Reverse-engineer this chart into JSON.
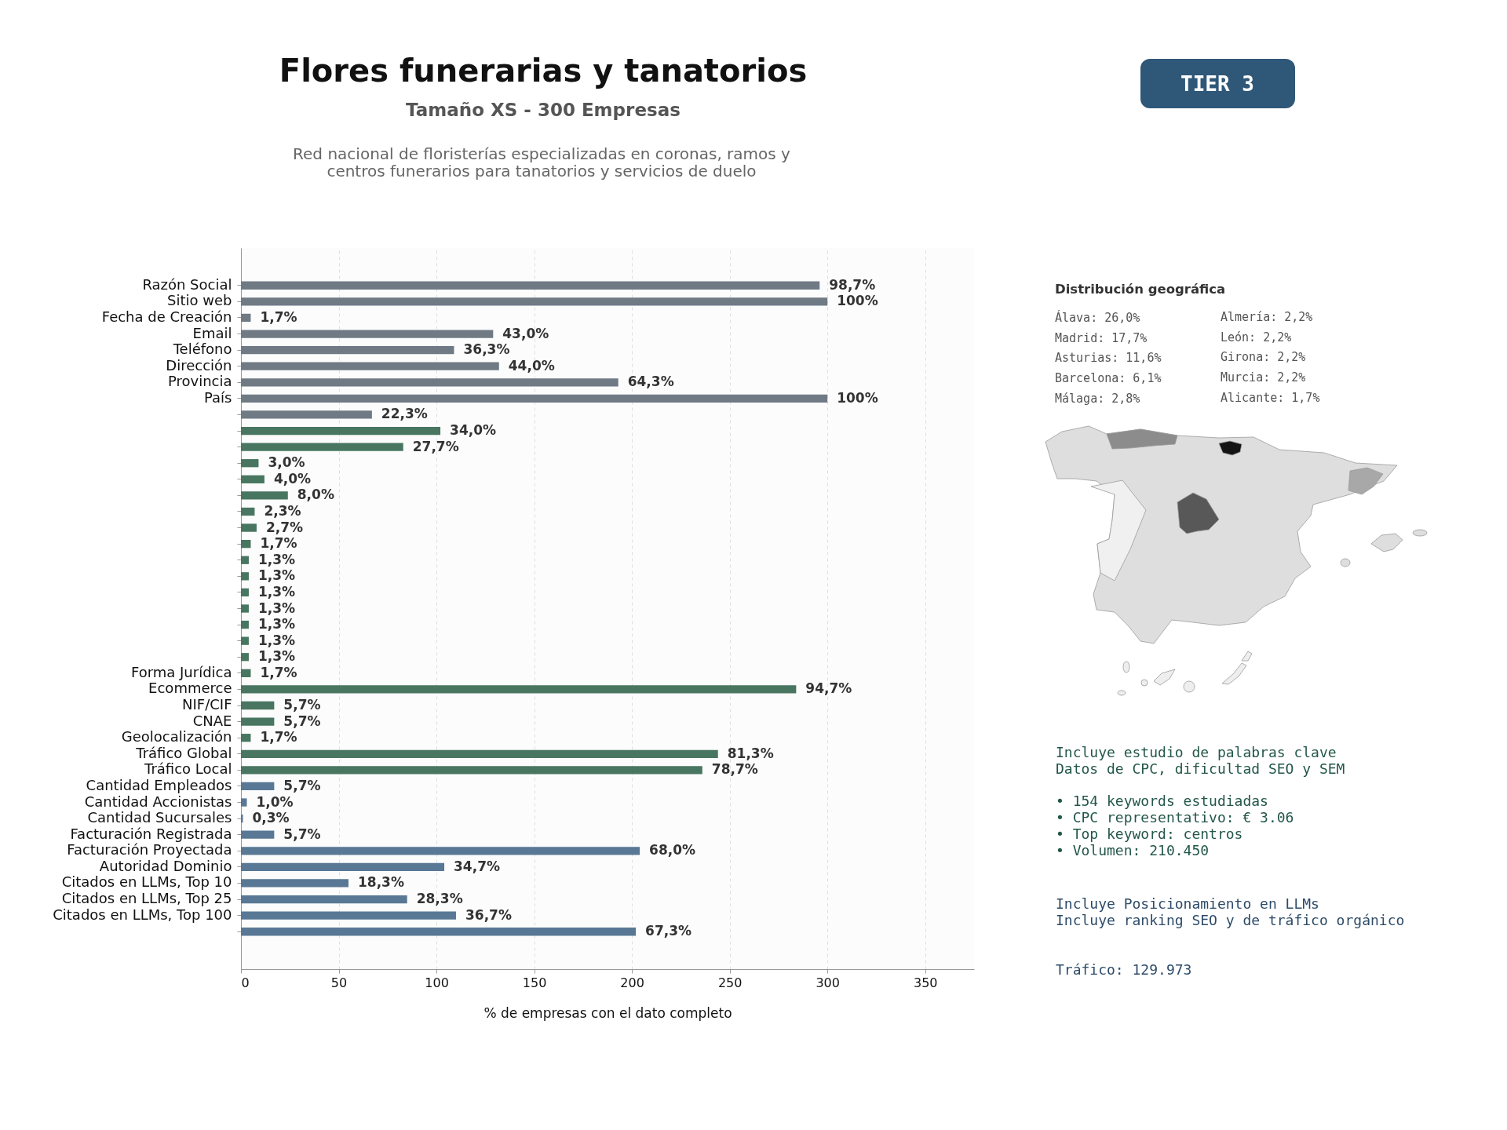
{
  "chart_data": {
    "type": "bar",
    "orientation": "horizontal",
    "title": "Flores funerarias y tanatorios",
    "subtitle": "Tamaño XS - 300 Empresas",
    "xlabel": "% de empresas con el dato completo",
    "categories": [
      "Razón Social",
      "Sitio web",
      "Fecha de Creación",
      "Email",
      "Teléfono",
      "Dirección",
      "Provincia",
      "País",
      null,
      null,
      null,
      null,
      null,
      null,
      null,
      null,
      null,
      null,
      null,
      null,
      null,
      null,
      null,
      null,
      "Forma Jurídica",
      "Ecommerce",
      "NIF/CIF",
      "CNAE",
      "Geolocalización",
      "Tráfico Global",
      "Tráfico Local",
      "Cantidad Empleados",
      "Cantidad Accionistas",
      "Cantidad Sucursales",
      "Facturación Registrada",
      "Facturación Proyectada",
      "Autoridad Dominio",
      "Citados en LLMs, Top 10",
      "Citados en LLMs, Top 25",
      "Citados en LLMs, Top 100",
      null
    ],
    "values": [
      296,
      300,
      5,
      129,
      109,
      132,
      193,
      300,
      67,
      102,
      83,
      9,
      12,
      24,
      7,
      8,
      5,
      4,
      4,
      4,
      4,
      4,
      4,
      4,
      5,
      284,
      17,
      17,
      5,
      244,
      236,
      17,
      3,
      1,
      17,
      204,
      104,
      55,
      85,
      110,
      202
    ],
    "colors": [
      "#6f7a85",
      "#6f7a85",
      "#6f7a85",
      "#6f7a85",
      "#6f7a85",
      "#6f7a85",
      "#6f7a85",
      "#6f7a85",
      "#6f7a85",
      "#487661",
      "#487661",
      "#487661",
      "#487661",
      "#487661",
      "#487661",
      "#487661",
      "#487661",
      "#487661",
      "#487661",
      "#487661",
      "#487661",
      "#487661",
      "#487661",
      "#487661",
      "#487661",
      "#487661",
      "#487661",
      "#487661",
      "#487661",
      "#487661",
      "#487661",
      "#587895",
      "#587895",
      "#587895",
      "#587895",
      "#587895",
      "#587895",
      "#587895",
      "#587895",
      "#587895",
      "#587895"
    ],
    "xlim": [
      0,
      375
    ],
    "xticks": [
      0,
      50,
      100,
      150,
      200,
      250,
      300,
      350
    ],
    "grid": "x",
    "annotations": [
      "Red nacional de floristerías especializadas en coronas, ramos y\ncentros funerarios para tanatorios y servicios de duelo",
      "TIER 3",
      "Distribución geográfica",
      "Álava: 26,0%",
      "Madrid: 17,7%",
      "Asturias: 11,6%",
      "Barcelona: 6,1%",
      "Málaga: 2,8%",
      "Almería: 2,2%",
      "León: 2,2%",
      "Girona: 2,2%",
      "Murcia: 2,2%",
      "Alicante: 1,7%",
      "Incluye estudio de palabras clave",
      "Datos de CPC, dificultad SEO y SEM",
      "• 154 keywords estudiadas",
      "• CPC representativo: € 3.06",
      "• Top keyword: centros",
      "• Volumen: 210.450",
      "Incluye Posicionamiento en LLMs",
      "Incluye ranking SEO y de tráfico orgánico",
      "Tráfico: 129.973",
      {
        "text": "98,7%",
        "x": 296,
        "y": "Razón Social"
      },
      {
        "text": "100%",
        "x": 300,
        "y": "Sitio web"
      },
      {
        "text": "1,7%",
        "x": 5,
        "y": "Fecha de Creación"
      },
      {
        "text": "43,0%",
        "x": 129,
        "y": "Email"
      },
      {
        "text": "36,3%",
        "x": 109,
        "y": "Teléfono"
      },
      {
        "text": "44,0%",
        "x": 132,
        "y": "Dirección"
      },
      {
        "text": "64,3%",
        "x": 193,
        "y": "Provincia"
      },
      {
        "text": "100%",
        "x": 300,
        "y": "País"
      },
      {
        "text": "22,3%",
        "x": 67
      },
      {
        "text": "34,0%",
        "x": 102
      },
      {
        "text": "27,7%",
        "x": 83
      },
      {
        "text": "3,0%",
        "x": 9
      },
      {
        "text": "4,0%",
        "x": 12
      },
      {
        "text": "8,0%",
        "x": 24
      },
      {
        "text": "2,3%",
        "x": 7
      },
      {
        "text": "2,7%",
        "x": 8
      },
      {
        "text": "1,7%",
        "x": 5
      },
      {
        "text": "1,3%",
        "x": 4
      },
      {
        "text": "1,3%",
        "x": 4
      },
      {
        "text": "1,3%",
        "x": 4
      },
      {
        "text": "1,3%",
        "x": 4
      },
      {
        "text": "1,3%",
        "x": 4
      },
      {
        "text": "1,3%",
        "x": 4
      },
      {
        "text": "1,3%",
        "x": 4
      },
      {
        "text": "1,7%",
        "x": 5,
        "y": "Forma Jurídica"
      },
      {
        "text": "94,7%",
        "x": 284,
        "y": "Ecommerce"
      },
      {
        "text": "5,7%",
        "x": 17,
        "y": "NIF/CIF"
      },
      {
        "text": "5,7%",
        "x": 17,
        "y": "CNAE"
      },
      {
        "text": "1,7%",
        "x": 5,
        "y": "Geolocalización"
      },
      {
        "text": "81,3%",
        "x": 244,
        "y": "Tráfico Global"
      },
      {
        "text": "78,7%",
        "x": 236,
        "y": "Tráfico Local"
      },
      {
        "text": "5,7%",
        "x": 17,
        "y": "Cantidad Empleados"
      },
      {
        "text": "1,0%",
        "x": 3,
        "y": "Cantidad Accionistas"
      },
      {
        "text": "0,3%",
        "x": 1,
        "y": "Cantidad Sucursales"
      },
      {
        "text": "5,7%",
        "x": 17,
        "y": "Facturación Registrada"
      },
      {
        "text": "68,0%",
        "x": 204,
        "y": "Facturación Proyectada"
      },
      {
        "text": "34,7%",
        "x": 104,
        "y": "Autoridad Dominio"
      },
      {
        "text": "18,3%",
        "x": 55,
        "y": "Citados en LLMs, Top 10"
      },
      {
        "text": "28,3%",
        "x": 85,
        "y": "Citados en LLMs, Top 25"
      },
      {
        "text": "36,7%",
        "x": 110,
        "y": "Citados en LLMs, Top 100"
      },
      {
        "text": "67,3%",
        "x": 202
      }
    ]
  }
}
